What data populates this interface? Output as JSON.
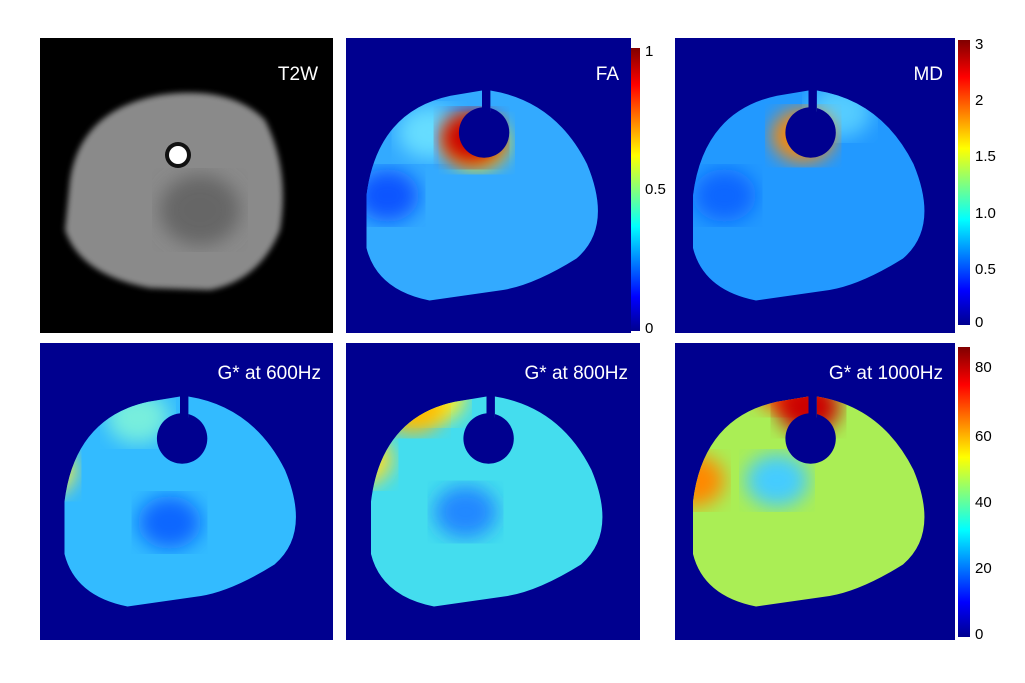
{
  "panels": [
    {
      "label": "T2W"
    },
    {
      "label": "FA",
      "colorbar": [
        "1",
        "0.5",
        "0"
      ]
    },
    {
      "label": "MD",
      "colorbar": [
        "3",
        "2",
        "1.5",
        "1.0",
        "0.5",
        "0"
      ]
    },
    {
      "label": "G* at 600Hz"
    },
    {
      "label": "G* at 800Hz"
    },
    {
      "label": "G* at 1000Hz",
      "colorbar": [
        "80",
        "60",
        "40",
        "20",
        "0"
      ]
    }
  ]
}
